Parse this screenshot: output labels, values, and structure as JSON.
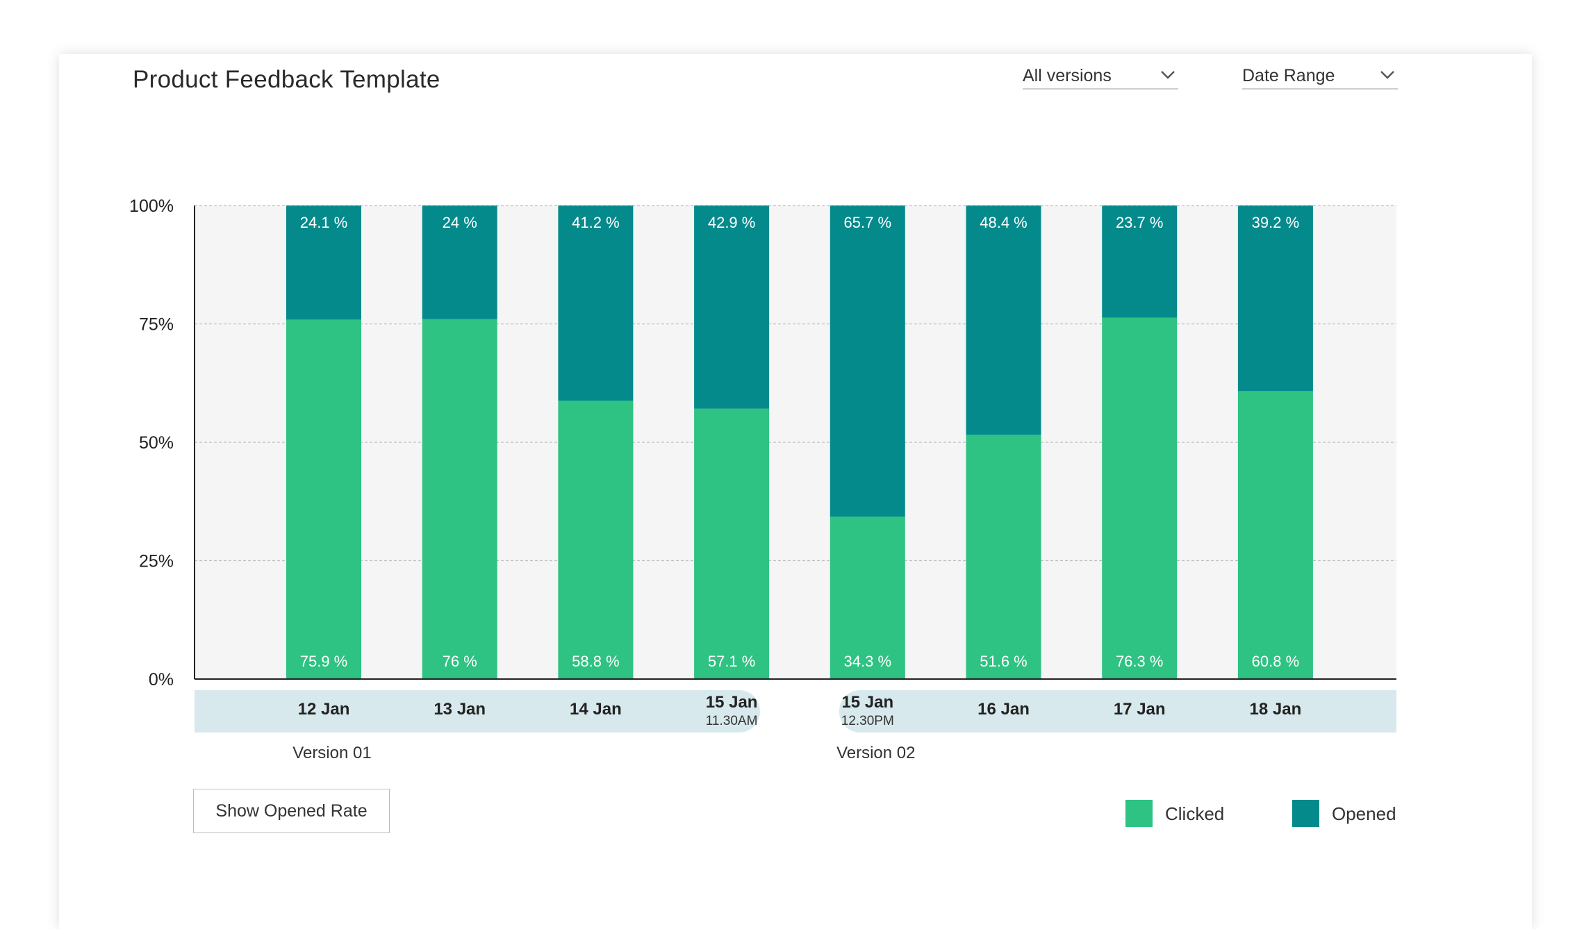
{
  "header": {
    "title": "Product Feedback Template",
    "version_filter": "All versions",
    "date_filter": "Date Range"
  },
  "colors": {
    "clicked": "#2ec283",
    "opened": "#058a8c",
    "plot_bg": "#f5f5f5",
    "axis_band": "#d7e9ec"
  },
  "chart_data": {
    "type": "bar",
    "stacked": true,
    "categories": [
      {
        "date": "12 Jan",
        "time": ""
      },
      {
        "date": "13 Jan",
        "time": ""
      },
      {
        "date": "14 Jan",
        "time": ""
      },
      {
        "date": "15 Jan",
        "time": "11.30AM"
      },
      {
        "date": "15 Jan",
        "time": "12.30PM"
      },
      {
        "date": "16 Jan",
        "time": ""
      },
      {
        "date": "17 Jan",
        "time": ""
      },
      {
        "date": "18 Jan",
        "time": ""
      }
    ],
    "series": [
      {
        "name": "Clicked",
        "values": [
          75.9,
          76,
          58.8,
          57.1,
          34.3,
          51.6,
          76.3,
          60.8
        ],
        "labels": [
          "75.9 %",
          "76 %",
          "58.8 %",
          "57.1 %",
          "34.3 %",
          "51.6 %",
          "76.3 %",
          "60.8 %"
        ]
      },
      {
        "name": "Opened",
        "values": [
          24.1,
          24,
          41.2,
          42.9,
          65.7,
          48.4,
          23.7,
          39.2
        ],
        "labels": [
          "24.1 %",
          "24 %",
          "41.2 %",
          "42.9 %",
          "65.7 %",
          "48.4 %",
          "23.7 %",
          "39.2 %"
        ]
      }
    ],
    "ylim": [
      0,
      100
    ],
    "yticks": [
      0,
      25,
      50,
      75,
      100
    ],
    "ytick_labels": [
      "0%",
      "25%",
      "50%",
      "75%",
      "100%"
    ],
    "groups": [
      {
        "label": "Version 01",
        "categories": [
          0,
          1,
          2,
          3
        ]
      },
      {
        "label": "Version 02",
        "categories": [
          4,
          5,
          6,
          7
        ]
      }
    ],
    "grid": true,
    "legend": "bottom-right"
  },
  "actions": {
    "toggle_label": "Show Opened Rate"
  },
  "legend": {
    "clicked_label": "Clicked",
    "opened_label": "Opened"
  }
}
